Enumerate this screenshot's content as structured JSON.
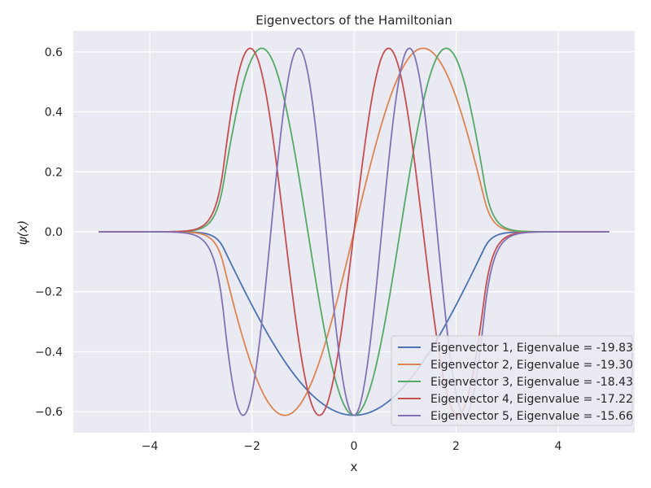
{
  "chart_data": {
    "type": "line",
    "title": "Eigenvectors of the Hamiltonian",
    "xlabel": "x",
    "ylabel": "ψ(x)",
    "xlim": [
      -5.5,
      5.5
    ],
    "ylim": [
      -0.67,
      0.67
    ],
    "x_ticks": [
      -4,
      -2,
      0,
      2,
      4
    ],
    "x_tick_labels": [
      "−4",
      "−2",
      "0",
      "2",
      "4"
    ],
    "y_ticks": [
      -0.6,
      -0.4,
      -0.2,
      0.0,
      0.2,
      0.4,
      0.6
    ],
    "y_tick_labels": [
      "−0.6",
      "−0.4",
      "−0.2",
      "0.0",
      "0.2",
      "0.4",
      "0.6"
    ],
    "grid": true,
    "legend_position": "lower-right",
    "x_range": [
      -5,
      5
    ],
    "series": [
      {
        "name": "Eigenvector 1, Eigenvalue = -19.83",
        "color": "#4c72b0",
        "n": 1,
        "amplitude": -0.612
      },
      {
        "name": "Eigenvector 2, Eigenvalue = -19.30",
        "color": "#dd8452",
        "n": 2,
        "amplitude": -0.612
      },
      {
        "name": "Eigenvector 3, Eigenvalue = -18.43",
        "color": "#55a868",
        "n": 3,
        "amplitude": -0.612
      },
      {
        "name": "Eigenvector 4, Eigenvalue = -17.22",
        "color": "#c44e52",
        "n": 4,
        "amplitude": -0.612
      },
      {
        "name": "Eigenvector 5, Eigenvalue = -15.66",
        "color": "#8172b3",
        "n": 5,
        "amplitude": -0.612
      }
    ]
  }
}
